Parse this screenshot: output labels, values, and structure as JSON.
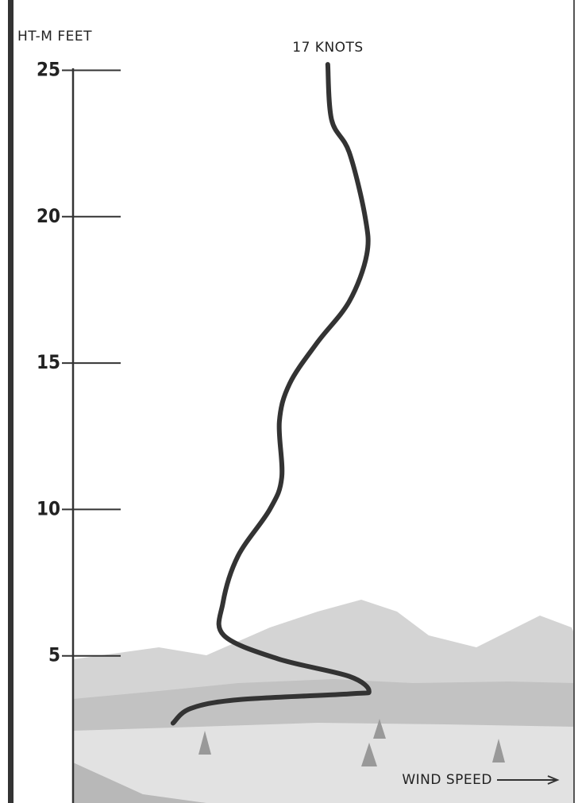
{
  "chart_data": {
    "type": "line",
    "ylabel": "HT-M FEET",
    "xlabel": "WIND SPEED",
    "annotation": "17 KNOTS",
    "x": [
      17.0,
      17.26,
      18.43,
      19.49,
      19.6,
      18.43,
      16.3,
      14.46,
      13.77,
      13.93,
      13.13,
      11.0,
      10.0,
      10.06,
      13.66,
      18.43,
      19.75,
      18.43,
      11.0,
      7.84,
      6.67
    ],
    "values": [
      25.2,
      23.3,
      22.2,
      20.0,
      18.7,
      17.1,
      15.7,
      14.3,
      13.0,
      11.1,
      10.0,
      8.4,
      6.8,
      5.7,
      4.9,
      4.3,
      3.8,
      3.7,
      3.5,
      3.2,
      2.7
    ],
    "color": "#333333",
    "xlim": [
      0,
      33.7
    ],
    "ylim": [
      0,
      27.4
    ],
    "yticks": [
      5,
      10,
      15,
      20,
      25
    ],
    "grid": false
  }
}
